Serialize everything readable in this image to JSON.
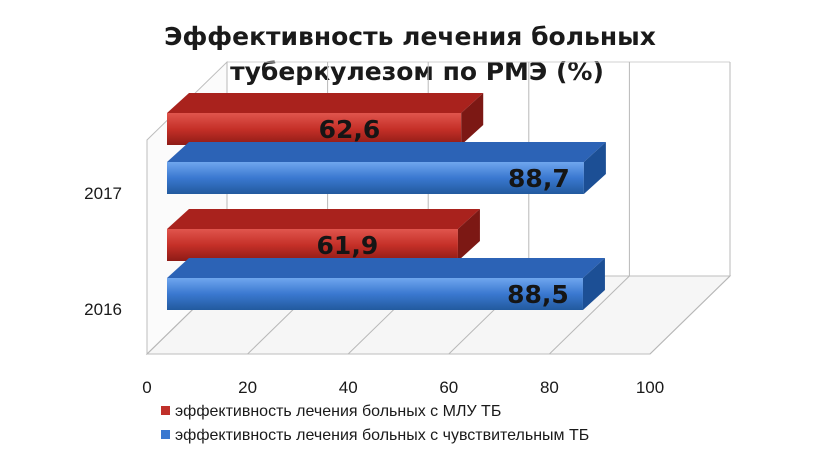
{
  "chart_data": {
    "type": "bar",
    "orientation": "horizontal",
    "three_d": true,
    "title_lines": [
      "Эффективность лечения больных",
      "туберкулезом по РМЭ (%)"
    ],
    "categories": [
      "2016",
      "2017"
    ],
    "xlim": [
      0,
      100
    ],
    "xticks": [
      "0",
      "20",
      "40",
      "60",
      "80",
      "100"
    ],
    "series": [
      {
        "name": "эффективность лечения больных с МЛУ ТБ",
        "color": "#c0302a",
        "values": [
          61.9,
          62.6
        ],
        "labels": [
          "61,9",
          "62,6"
        ]
      },
      {
        "name": "эффективность лечения больных с чувствительным ТБ",
        "color": "#3a78d0",
        "values": [
          88.5,
          88.7
        ],
        "labels": [
          "88,5",
          "88,7"
        ]
      }
    ],
    "legend_position": "bottom",
    "grid": "vertical"
  }
}
